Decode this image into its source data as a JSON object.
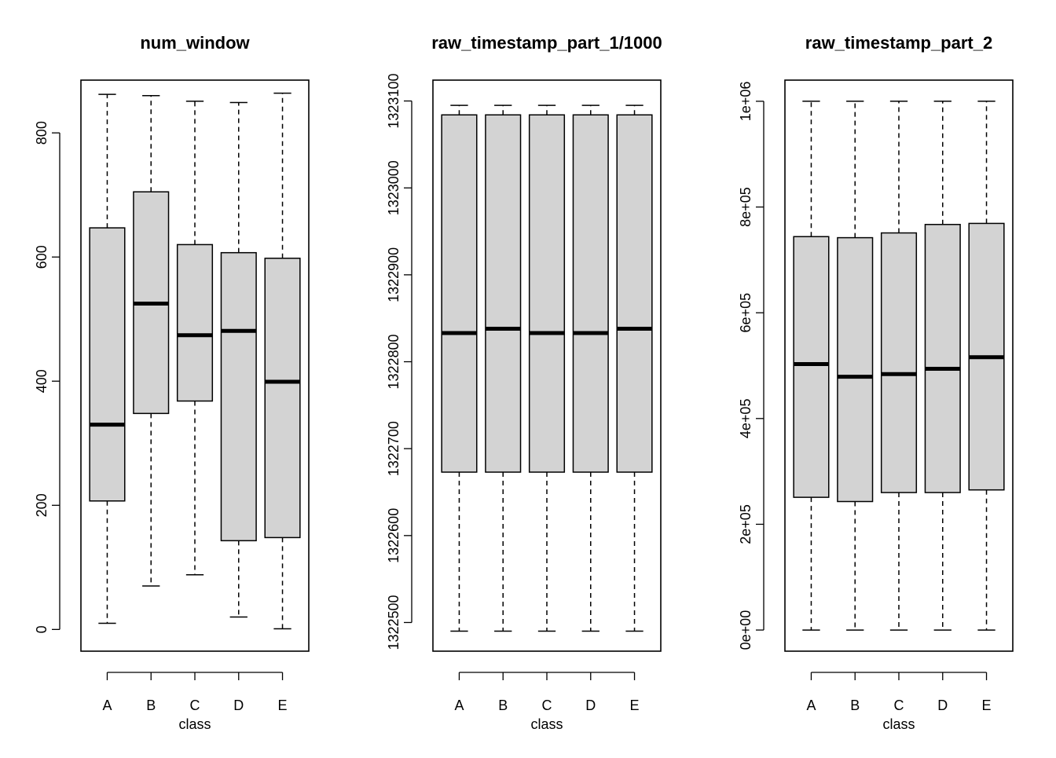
{
  "chart_data": [
    {
      "type": "boxplot",
      "title": "num_window",
      "xlabel": "class",
      "ylabel": "",
      "categories": [
        "A",
        "B",
        "C",
        "D",
        "E"
      ],
      "ylim": [
        -35,
        885
      ],
      "yticks": [
        {
          "value": 0,
          "label": "0"
        },
        {
          "value": 200,
          "label": "200"
        },
        {
          "value": 400,
          "label": "400"
        },
        {
          "value": 600,
          "label": "600"
        },
        {
          "value": 800,
          "label": "800"
        }
      ],
      "boxes": [
        {
          "min": 10,
          "q1": 207,
          "median": 330,
          "q3": 647,
          "max": 862
        },
        {
          "min": 70,
          "q1": 348,
          "median": 525,
          "q3": 705,
          "max": 860
        },
        {
          "min": 88,
          "q1": 368,
          "median": 474,
          "q3": 620,
          "max": 851
        },
        {
          "min": 20,
          "q1": 143,
          "median": 481,
          "q3": 607,
          "max": 849
        },
        {
          "min": 1,
          "q1": 148,
          "median": 399,
          "q3": 598,
          "max": 864
        }
      ],
      "box_fill": "#d3d3d3"
    },
    {
      "type": "boxplot",
      "title": "raw_timestamp_part_1/1000",
      "xlabel": "class",
      "ylabel": "",
      "categories": [
        "A",
        "B",
        "C",
        "D",
        "E"
      ],
      "ylim": [
        1322467,
        1323124
      ],
      "yticks": [
        {
          "value": 1322500,
          "label": "1322500"
        },
        {
          "value": 1322600,
          "label": "1322600"
        },
        {
          "value": 1322700,
          "label": "1322700"
        },
        {
          "value": 1322800,
          "label": "1322800"
        },
        {
          "value": 1322900,
          "label": "1322900"
        },
        {
          "value": 1323000,
          "label": "1323000"
        },
        {
          "value": 1323100,
          "label": "1323100"
        }
      ],
      "boxes": [
        {
          "min": 1322490,
          "q1": 1322673,
          "median": 1322833,
          "q3": 1323084,
          "max": 1323095
        },
        {
          "min": 1322490,
          "q1": 1322673,
          "median": 1322838,
          "q3": 1323084,
          "max": 1323095
        },
        {
          "min": 1322490,
          "q1": 1322673,
          "median": 1322833,
          "q3": 1323084,
          "max": 1323095
        },
        {
          "min": 1322490,
          "q1": 1322673,
          "median": 1322833,
          "q3": 1323084,
          "max": 1323095
        },
        {
          "min": 1322490,
          "q1": 1322673,
          "median": 1322838,
          "q3": 1323084,
          "max": 1323095
        }
      ],
      "box_fill": "#d3d3d3"
    },
    {
      "type": "boxplot",
      "title": "raw_timestamp_part_2",
      "xlabel": "class",
      "ylabel": "",
      "categories": [
        "A",
        "B",
        "C",
        "D",
        "E"
      ],
      "ylim": [
        -40000,
        1040000
      ],
      "yticks": [
        {
          "value": 0,
          "label": "0e+00"
        },
        {
          "value": 200000,
          "label": "2e+05"
        },
        {
          "value": 400000,
          "label": "4e+05"
        },
        {
          "value": 600000,
          "label": "6e+05"
        },
        {
          "value": 800000,
          "label": "8e+05"
        },
        {
          "value": 1000000,
          "label": "1e+06"
        }
      ],
      "boxes": [
        {
          "min": 0,
          "q1": 251000,
          "median": 503000,
          "q3": 744000,
          "max": 1000000
        },
        {
          "min": 0,
          "q1": 243000,
          "median": 479000,
          "q3": 742000,
          "max": 1000000
        },
        {
          "min": 0,
          "q1": 260000,
          "median": 484000,
          "q3": 751000,
          "max": 1000000
        },
        {
          "min": 0,
          "q1": 260000,
          "median": 494000,
          "q3": 767000,
          "max": 1000000
        },
        {
          "min": 0,
          "q1": 265000,
          "median": 516000,
          "q3": 769000,
          "max": 1000000
        }
      ],
      "box_fill": "#d3d3d3"
    }
  ]
}
